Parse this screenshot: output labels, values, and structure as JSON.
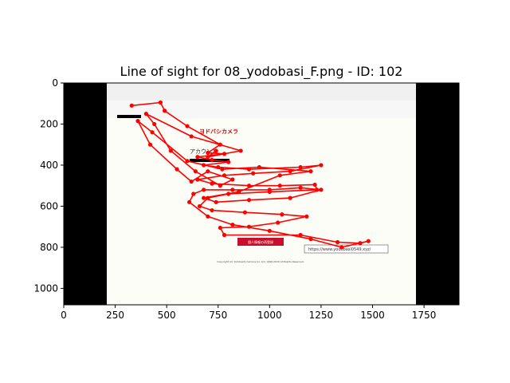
{
  "chart_data": {
    "type": "scatter",
    "title": "Line of sight for 08_yodobasi_F.png - ID: 102",
    "xlabel": "",
    "ylabel": "",
    "xlim": [
      0,
      1920
    ],
    "ylim": [
      1080,
      0
    ],
    "x_ticks": [
      0,
      250,
      500,
      750,
      1000,
      1250,
      1500,
      1750
    ],
    "y_ticks": [
      0,
      200,
      400,
      600,
      800,
      1000
    ],
    "x_tick_labels": [
      "0",
      "250",
      "500",
      "750",
      "1000",
      "1250",
      "1500",
      "1750"
    ],
    "y_tick_labels": [
      "0",
      "200",
      "400",
      "600",
      "800",
      "1000"
    ],
    "grid": false,
    "background_image": {
      "file": "08_yodobasi_F.png",
      "image_width": 1920,
      "image_height": 1080,
      "content_x_range": [
        210,
        1720
      ],
      "black_side_bars": true,
      "visible_text": {
        "logo": "ヨドバシカメラ",
        "heading": "アカウント",
        "button": "個人情報の再登録",
        "url_tooltip": "https://www.yodobasi0549.xyz/",
        "footer": "Copyright (C) Yodobashi Camera Co.,Ltd. 1996-2020 All Rights Reserved."
      }
    },
    "series": [
      {
        "color": "#ff0000",
        "marker": "circle",
        "points": [
          [
            330,
            110
          ],
          [
            470,
            95
          ],
          [
            490,
            135
          ],
          [
            600,
            210
          ],
          [
            760,
            300
          ],
          [
            700,
            340
          ],
          [
            780,
            345
          ],
          [
            650,
            360
          ],
          [
            720,
            375
          ],
          [
            800,
            385
          ],
          [
            680,
            400
          ],
          [
            750,
            410
          ],
          [
            900,
            420
          ],
          [
            1150,
            410
          ],
          [
            1250,
            400
          ],
          [
            1100,
            430
          ],
          [
            920,
            440
          ],
          [
            780,
            450
          ],
          [
            650,
            470
          ],
          [
            720,
            490
          ],
          [
            900,
            500
          ],
          [
            1050,
            500
          ],
          [
            1220,
            495
          ],
          [
            1230,
            520
          ],
          [
            1000,
            530
          ],
          [
            800,
            540
          ],
          [
            700,
            560
          ],
          [
            660,
            600
          ],
          [
            720,
            620
          ],
          [
            880,
            630
          ],
          [
            1060,
            640
          ],
          [
            1180,
            650
          ],
          [
            1040,
            680
          ],
          [
            900,
            700
          ],
          [
            760,
            705
          ],
          [
            780,
            740
          ],
          [
            1150,
            740
          ],
          [
            1330,
            775
          ],
          [
            1440,
            780
          ],
          [
            1480,
            770
          ],
          [
            1350,
            800
          ],
          [
            1200,
            760
          ],
          [
            1000,
            720
          ],
          [
            820,
            690
          ],
          [
            700,
            650
          ],
          [
            610,
            580
          ],
          [
            630,
            540
          ],
          [
            680,
            520
          ],
          [
            820,
            520
          ],
          [
            1000,
            520
          ],
          [
            1150,
            510
          ],
          [
            1250,
            520
          ],
          [
            1100,
            560
          ],
          [
            900,
            570
          ],
          [
            740,
            580
          ],
          [
            680,
            560
          ],
          [
            850,
            530
          ],
          [
            1050,
            450
          ],
          [
            1200,
            430
          ],
          [
            950,
            410
          ],
          [
            770,
            420
          ],
          [
            600,
            380
          ],
          [
            430,
            240
          ],
          [
            360,
            185
          ],
          [
            420,
            300
          ],
          [
            550,
            420
          ],
          [
            620,
            480
          ],
          [
            700,
            430
          ],
          [
            820,
            470
          ],
          [
            760,
            500
          ],
          [
            640,
            430
          ],
          [
            520,
            330
          ],
          [
            440,
            200
          ],
          [
            400,
            150
          ],
          [
            620,
            260
          ],
          [
            860,
            330
          ],
          [
            700,
            360
          ],
          [
            740,
            330
          ]
        ]
      }
    ]
  }
}
